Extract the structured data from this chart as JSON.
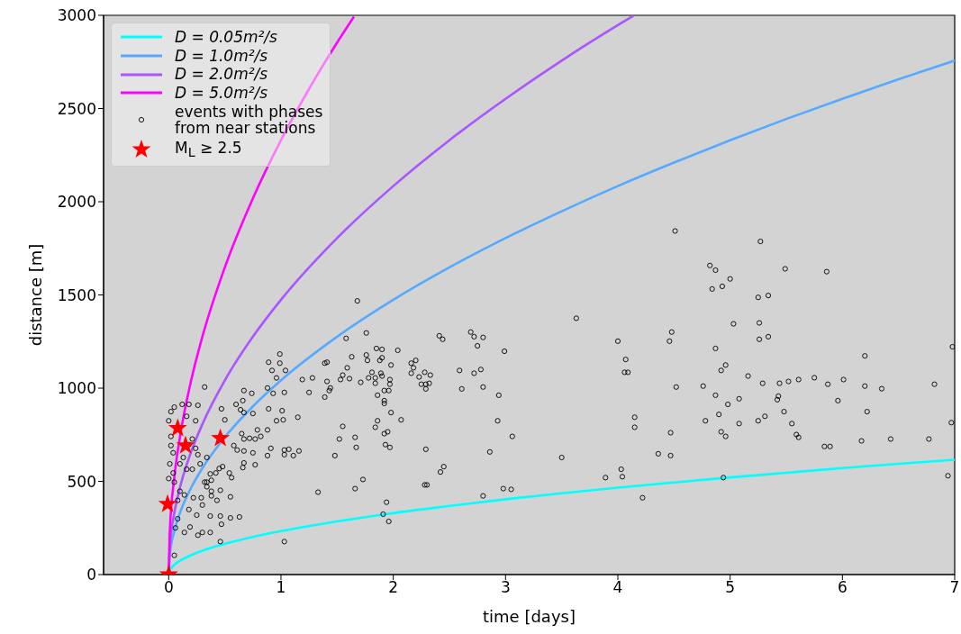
{
  "chart_data": {
    "type": "scatter",
    "xlabel": "time [days]",
    "ylabel": "distance [m]",
    "xlim": [
      -0.58,
      7
    ],
    "ylim": [
      0,
      3000
    ],
    "xticks": [
      0,
      1,
      2,
      3,
      4,
      5,
      6,
      7
    ],
    "yticks": [
      0,
      500,
      1000,
      1500,
      2000,
      2500,
      3000
    ],
    "legend": "top left",
    "series": [
      {
        "name": "D = 0.05m²/s",
        "type": "line",
        "color": "#00ffff",
        "line_style": "solid",
        "x": [
          0,
          0.01,
          0.05,
          0.1,
          0.2,
          0.3,
          0.5,
          0.75,
          1,
          1.5,
          2,
          2.5,
          3,
          3.5,
          4,
          4.5,
          5,
          5.5,
          6,
          6.5,
          7
        ],
        "values": [
          0,
          23,
          52,
          74,
          104,
          128,
          165,
          202,
          233,
          285,
          330,
          368,
          404,
          436,
          466,
          494,
          521,
          546,
          571,
          594,
          616
        ]
      },
      {
        "name": "D = 1.0m²/s",
        "type": "line",
        "color": "#55aaff",
        "line_style": "solid",
        "x": [
          0,
          0.01,
          0.05,
          0.1,
          0.2,
          0.3,
          0.5,
          0.75,
          1,
          1.5,
          2,
          2.5,
          3,
          3.5,
          4,
          4.5,
          5,
          5.5,
          6,
          6.5,
          7
        ],
        "values": [
          0,
          104,
          233,
          330,
          466,
          571,
          737,
          902,
          1042,
          1276,
          1474,
          1648,
          1805,
          1949,
          2084,
          2210,
          2330,
          2444,
          2552,
          2657,
          2757
        ]
      },
      {
        "name": "D = 2.0m²/s",
        "type": "line",
        "color": "#aa55ff",
        "line_style": "solid",
        "x": [
          0,
          0.01,
          0.05,
          0.1,
          0.2,
          0.3,
          0.5,
          0.75,
          1,
          1.5,
          2,
          2.5,
          3,
          3.5,
          4,
          4.14
        ],
        "values": [
          0,
          147,
          330,
          466,
          659,
          807,
          1042,
          1276,
          1474,
          1805,
          2084,
          2330,
          2552,
          2757,
          2947,
          2998
        ]
      },
      {
        "name": "D = 5.0m²/s",
        "type": "line",
        "color": "#ff00ff",
        "line_style": "solid",
        "x": [
          0,
          0.01,
          0.05,
          0.1,
          0.2,
          0.3,
          0.5,
          0.75,
          1,
          1.25,
          1.5,
          1.65
        ],
        "values": [
          0,
          233,
          521,
          737,
          1042,
          1276,
          1648,
          2018,
          2330,
          2605,
          2854,
          2993
        ]
      },
      {
        "name": "events with phases\nfrom near stations",
        "color": "#000000",
        "marker": "circle",
        "x": [
          4.51,
          4.82,
          4.87,
          5.27,
          5.49,
          5.86,
          5.0,
          4.93,
          4.84,
          5.25,
          5.34,
          5.26,
          5.03,
          4.48,
          3.63,
          5.34,
          5.26,
          4.87,
          6.98,
          6.2,
          4.96,
          4.92,
          5.16,
          4.0,
          4.07,
          4.06,
          4.09,
          4.46,
          4.52,
          4.76,
          5.44,
          5.52,
          5.61,
          5.29,
          5.43,
          5.42,
          5.48,
          5.55,
          6.01,
          6.2,
          5.87,
          5.75,
          5.96,
          6.22,
          6.82,
          6.35,
          6.97,
          5.31,
          5.25,
          5.08,
          4.98,
          4.9,
          4.87,
          4.78,
          4.96,
          4.92,
          5.08,
          5.61,
          5.59,
          5.84,
          5.89,
          6.17,
          6.43,
          6.77,
          4.47,
          4.36,
          4.15,
          4.15,
          3.89,
          4.03,
          4.04,
          4.22,
          3.5,
          4.94,
          6.94,
          4.47,
          1.68,
          1.76,
          1.58,
          1.85,
          1.9,
          2.04,
          1.76,
          1.77,
          1.9,
          1.88,
          1.98,
          1.81,
          1.89,
          1.9,
          1.78,
          1.84,
          1.97,
          1.97,
          1.84,
          1.71,
          1.61,
          1.92,
          1.96,
          1.86,
          1.92,
          1.92,
          1.98,
          2.07,
          1.86,
          1.84,
          1.92,
          1.95,
          1.93,
          1.97,
          1.55,
          1.52,
          1.66,
          1.67,
          1.48,
          1.73,
          1.66,
          1.94,
          1.91,
          1.96,
          2.41,
          2.44,
          2.69,
          2.72,
          2.8,
          2.75,
          2.99,
          2.16,
          2.2,
          2.18,
          2.16,
          2.23,
          2.28,
          2.33,
          2.25,
          2.29,
          2.32,
          2.29,
          2.59,
          2.72,
          2.78,
          2.61,
          2.8,
          2.94,
          2.93,
          3.06,
          2.86,
          2.29,
          2.45,
          2.42,
          2.28,
          2.3,
          2.8,
          2.98,
          3.05,
          0.89,
          0.99,
          0.99,
          0.92,
          1.04,
          0.96,
          1.19,
          1.28,
          1.41,
          0.88,
          0.93,
          1.03,
          1.25,
          0.74,
          0.67,
          0.6,
          0.66,
          0.64,
          0.67,
          0.75,
          0.47,
          0.5,
          0.32,
          0.89,
          1.01,
          0.96,
          1.02,
          1.15,
          0.79,
          0.88,
          0.65,
          0.72,
          0.67,
          0.77,
          0.82,
          0.58,
          0.61,
          0.67,
          0.75,
          0.91,
          1.03,
          1.07,
          1.16,
          1.11,
          1.03,
          0.88,
          0.77,
          0.67,
          0.66,
          0.48,
          0.54,
          0.56,
          0.45,
          0.42,
          0.38,
          0.34,
          0.34,
          0.38,
          0.46,
          0.55,
          0.43,
          0.38,
          0.29,
          0.22,
          0.3,
          0.14,
          0.18,
          0.25,
          0.37,
          0.46,
          0.55,
          0.63,
          0.47,
          0.19,
          0.14,
          0.3,
          0.37,
          0.26,
          0.46,
          1.03,
          0.05,
          0.24,
          0.26,
          0.21,
          0.28,
          0.37,
          0.34,
          0.32,
          0.0,
          0.02,
          0.05,
          0.12,
          0.18,
          0.16,
          0.24,
          0.02,
          0.02,
          0.04,
          0.01,
          0.04,
          0.0,
          0.05,
          0.1,
          0.13,
          0.16,
          0.1,
          0.08,
          0.06,
          0.08,
          0.18,
          0.21,
          0.26,
          1.39,
          1.41,
          1.43,
          1.39,
          1.44,
          1.63,
          1.59,
          1.55,
          1.53,
          1.33
        ],
        "values": [
          1843,
          1658,
          1633,
          1787,
          1640,
          1625,
          1586,
          1546,
          1532,
          1487,
          1497,
          1350,
          1345,
          1301,
          1375,
          1276,
          1262,
          1213,
          1222,
          1173,
          1124,
          1095,
          1065,
          1252,
          1154,
          1085,
          1085,
          1252,
          1006,
          1011,
          1026,
          1036,
          1046,
          1026,
          957,
          938,
          874,
          810,
          1046,
          1011,
          1021,
          1056,
          933,
          874,
          1021,
          997,
          815,
          849,
          825,
          943,
          913,
          859,
          962,
          825,
          741,
          766,
          810,
          736,
          751,
          687,
          687,
          717,
          727,
          727,
          761,
          648,
          844,
          790,
          520,
          565,
          525,
          412,
          628,
          520,
          530,
          638,
          1468,
          1296,
          1267,
          1213,
          1208,
          1203,
          1178,
          1149,
          1163,
          1149,
          1124,
          1085,
          1080,
          1065,
          1055,
          1055,
          1046,
          1021,
          1026,
          1031,
          1051,
          987,
          987,
          962,
          933,
          918,
          869,
          830,
          825,
          790,
          756,
          766,
          697,
          682,
          795,
          727,
          736,
          682,
          638,
          510,
          461,
          388,
          324,
          285,
          1281,
          1262,
          1301,
          1276,
          1272,
          1227,
          1198,
          1134,
          1149,
          1109,
          1080,
          1060,
          1085,
          1070,
          1021,
          1021,
          1026,
          996,
          1095,
          1080,
          1100,
          996,
          1006,
          962,
          825,
          741,
          658,
          672,
          579,
          550,
          481,
          481,
          422,
          461,
          457,
          1139,
          1183,
          1134,
          1095,
          1095,
          1055,
          1046,
          1055,
          1139,
          1001,
          972,
          977,
          977,
          972,
          987,
          913,
          933,
          884,
          869,
          864,
          889,
          830,
          1006,
          889,
          879,
          825,
          830,
          844,
          776,
          776,
          756,
          731,
          727,
          727,
          741,
          692,
          668,
          663,
          653,
          677,
          668,
          672,
          663,
          638,
          643,
          638,
          589,
          599,
          574,
          579,
          545,
          520,
          569,
          545,
          506,
          496,
          471,
          447,
          452,
          417,
          398,
          422,
          412,
          412,
          373,
          427,
          349,
          319,
          314,
          314,
          304,
          309,
          270,
          255,
          226,
          226,
          226,
          211,
          177,
          177,
          103,
          677,
          643,
          565,
          594,
          540,
          628,
          496,
          825,
          874,
          898,
          913,
          913,
          849,
          825,
          741,
          692,
          653,
          594,
          545,
          515,
          496,
          594,
          628,
          565,
          447,
          398,
          250,
          299,
          697,
          727,
          908,
          1134,
          1036,
          987,
          952,
          1001,
          1168,
          1109,
          1070,
          1046,
          442
        ]
      },
      {
        "name": "M$_{L}$ ≥ 2.5",
        "color": "#ff0000",
        "marker": "star",
        "x": [
          0,
          -0.01,
          0.08,
          0.15,
          0.46
        ],
        "values": [
          0,
          378,
          785,
          692,
          731
        ]
      }
    ]
  }
}
